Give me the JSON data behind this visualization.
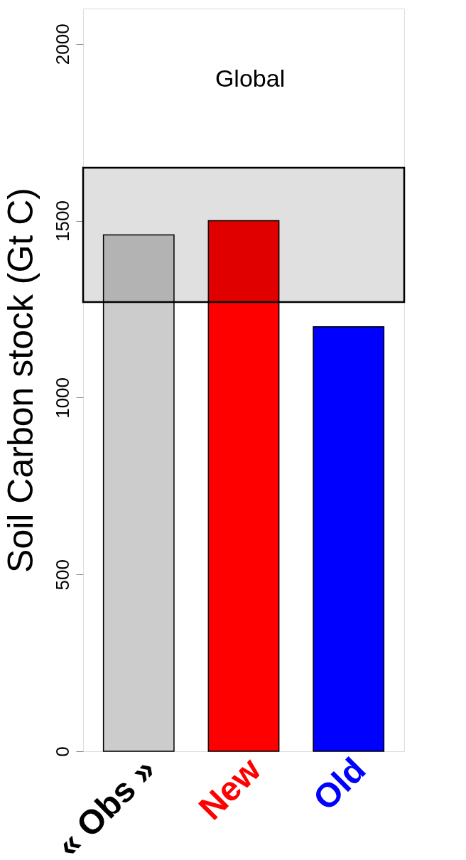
{
  "chart_data": {
    "type": "bar",
    "ylabel": "Soil Carbon stock (Gt C)",
    "categories": [
      "« Obs »",
      "New",
      "Old"
    ],
    "values": [
      1460,
      1500,
      1200
    ],
    "colors": [
      "#cccccc",
      "#ff0000",
      "#0000ff"
    ],
    "ylim": [
      0,
      2100
    ],
    "yticks": [
      0,
      500,
      1000,
      1500,
      2000
    ],
    "bands": [
      {
        "axis": "y",
        "from": 1270,
        "to": 1650,
        "label": "Global"
      }
    ],
    "grid": false,
    "legend": false
  }
}
